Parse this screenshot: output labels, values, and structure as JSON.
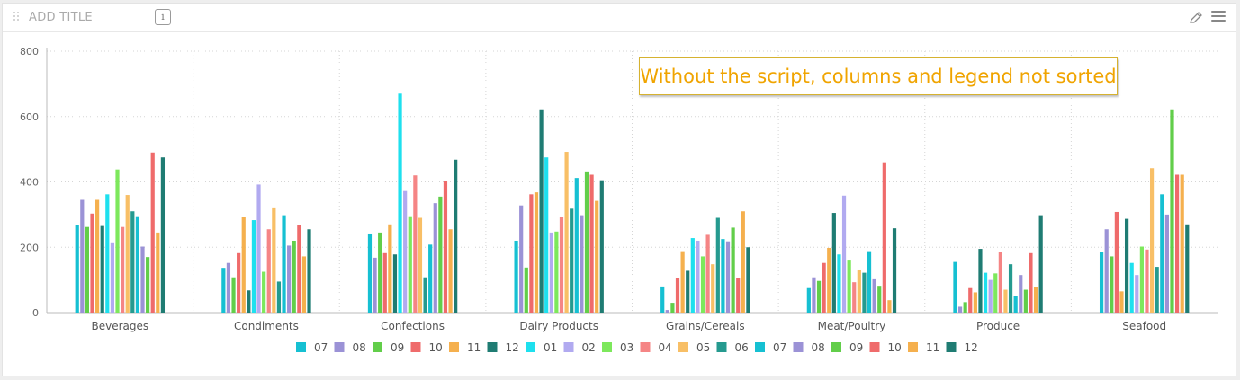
{
  "widget": {
    "title": "ADD TITLE",
    "info_icon": "info-icon",
    "edit_icon": "pencil-icon",
    "menu_icon": "hamburger-menu-icon",
    "info_glyph": "i"
  },
  "annotation": {
    "text": "Without the script, columns and legend not sorted",
    "color": "#f0a400",
    "border_color": "#d6b230"
  },
  "chart_data": {
    "type": "bar",
    "title": "",
    "xlabel": "",
    "ylabel": "",
    "ylim": [
      0,
      800
    ],
    "yticks": [
      0,
      200,
      400,
      600,
      800
    ],
    "grid": true,
    "legend_position": "bottom",
    "categories": [
      "Beverages",
      "Condiments",
      "Confections",
      "Dairy Products",
      "Grains/Cereals",
      "Meat/Poultry",
      "Produce",
      "Seafood"
    ],
    "series": [
      {
        "name": "07",
        "color": "#16c0d2",
        "values": [
          268,
          137,
          242,
          220,
          80,
          75,
          155,
          185
        ]
      },
      {
        "name": "08",
        "color": "#9b92d6",
        "values": [
          345,
          152,
          168,
          328,
          8,
          108,
          18,
          255
        ]
      },
      {
        "name": "09",
        "color": "#62ce4a",
        "values": [
          262,
          108,
          245,
          138,
          30,
          97,
          32,
          172
        ]
      },
      {
        "name": "10",
        "color": "#ef6b6b",
        "values": [
          303,
          182,
          182,
          362,
          105,
          152,
          75,
          308
        ]
      },
      {
        "name": "11",
        "color": "#f5b04e",
        "values": [
          345,
          292,
          270,
          368,
          188,
          198,
          62,
          65
        ]
      },
      {
        "name": "12",
        "color": "#1f7c73",
        "values": [
          265,
          68,
          178,
          622,
          128,
          305,
          195,
          287
        ]
      },
      {
        "name": "01",
        "color": "#1ee0ee",
        "values": [
          362,
          283,
          670,
          475,
          228,
          178,
          122,
          152
        ]
      },
      {
        "name": "02",
        "color": "#b1aaf0",
        "values": [
          215,
          392,
          372,
          245,
          220,
          358,
          100,
          115
        ]
      },
      {
        "name": "03",
        "color": "#7de85c",
        "values": [
          438,
          125,
          295,
          248,
          172,
          162,
          120,
          202
        ]
      },
      {
        "name": "04",
        "color": "#f58585",
        "values": [
          262,
          255,
          420,
          292,
          238,
          93,
          185,
          193
        ]
      },
      {
        "name": "05",
        "color": "#f8bf66",
        "values": [
          360,
          322,
          290,
          492,
          148,
          132,
          70,
          442
        ]
      },
      {
        "name": "06",
        "color": "#259a8f",
        "values": [
          310,
          95,
          108,
          318,
          290,
          122,
          148,
          140
        ]
      },
      {
        "name": "07",
        "color": "#16c0d2",
        "values": [
          295,
          298,
          208,
          412,
          225,
          188,
          52,
          362
        ]
      },
      {
        "name": "08",
        "color": "#9b92d6",
        "values": [
          202,
          205,
          335,
          298,
          218,
          102,
          115,
          300
        ]
      },
      {
        "name": "09",
        "color": "#62ce4a",
        "values": [
          170,
          220,
          355,
          432,
          260,
          82,
          70,
          622
        ]
      },
      {
        "name": "10",
        "color": "#ef6b6b",
        "values": [
          490,
          268,
          402,
          422,
          105,
          460,
          182,
          422
        ]
      },
      {
        "name": "11",
        "color": "#f5b04e",
        "values": [
          245,
          172,
          255,
          342,
          310,
          38,
          78,
          422
        ]
      },
      {
        "name": "12",
        "color": "#1f7c73",
        "values": [
          475,
          255,
          468,
          405,
          200,
          258,
          298,
          270
        ]
      }
    ]
  }
}
